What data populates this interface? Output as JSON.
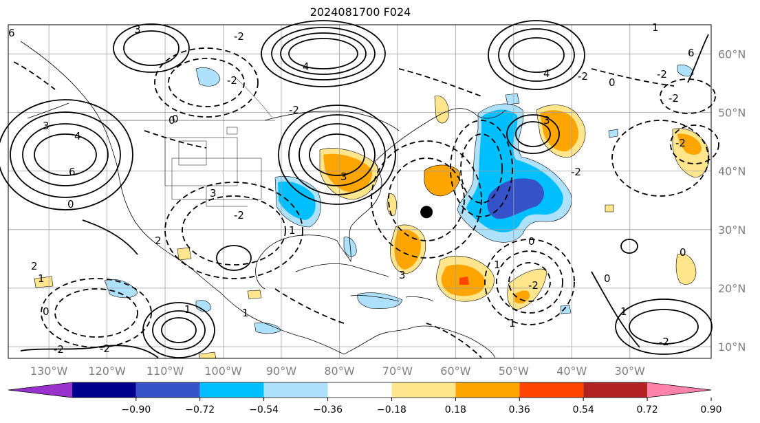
{
  "title": "2024081700 F024",
  "map": {
    "lon_labels": [
      "130°W",
      "120°W",
      "110°W",
      "100°W",
      "90°W",
      "80°W",
      "70°W",
      "60°W",
      "50°W",
      "40°W",
      "30°W"
    ],
    "lat_labels": [
      "60°N",
      "50°N",
      "40°N",
      "30°N",
      "20°N",
      "10°N"
    ],
    "lon_values": [
      -130,
      -120,
      -110,
      -100,
      -90,
      -80,
      -70,
      -60,
      -50,
      -40,
      -30
    ],
    "lat_values": [
      60,
      50,
      40,
      30,
      20,
      10
    ],
    "extent": {
      "lon_min": -137,
      "lon_max": -16,
      "lat_min": 8,
      "lat_max": 65
    },
    "marker": {
      "lon": -65,
      "lat": 33,
      "color": "#000000"
    },
    "contour_labels": [
      "6",
      "4",
      "2",
      "0",
      "-2",
      "3",
      "1"
    ]
  },
  "colorbar": {
    "ticks": [
      "−0.90",
      "−0.72",
      "−0.54",
      "−0.36",
      "−0.18",
      "0.18",
      "0.36",
      "0.54",
      "0.72",
      "0.90"
    ],
    "colors": [
      "#9932cc",
      "#00008b",
      "#3652c8",
      "#00bfff",
      "#aee1fc",
      "#ffffff",
      "#ffe68c",
      "#ffa500",
      "#ff4500",
      "#b22222",
      "#ff82ab"
    ]
  },
  "colors": {
    "neg_light": "#aee1fc",
    "neg_mid": "#00bfff",
    "neg_dark": "#3652c8",
    "pos_light": "#ffe68c",
    "pos_mid": "#ffa500",
    "pos_dark": "#ff4500"
  }
}
